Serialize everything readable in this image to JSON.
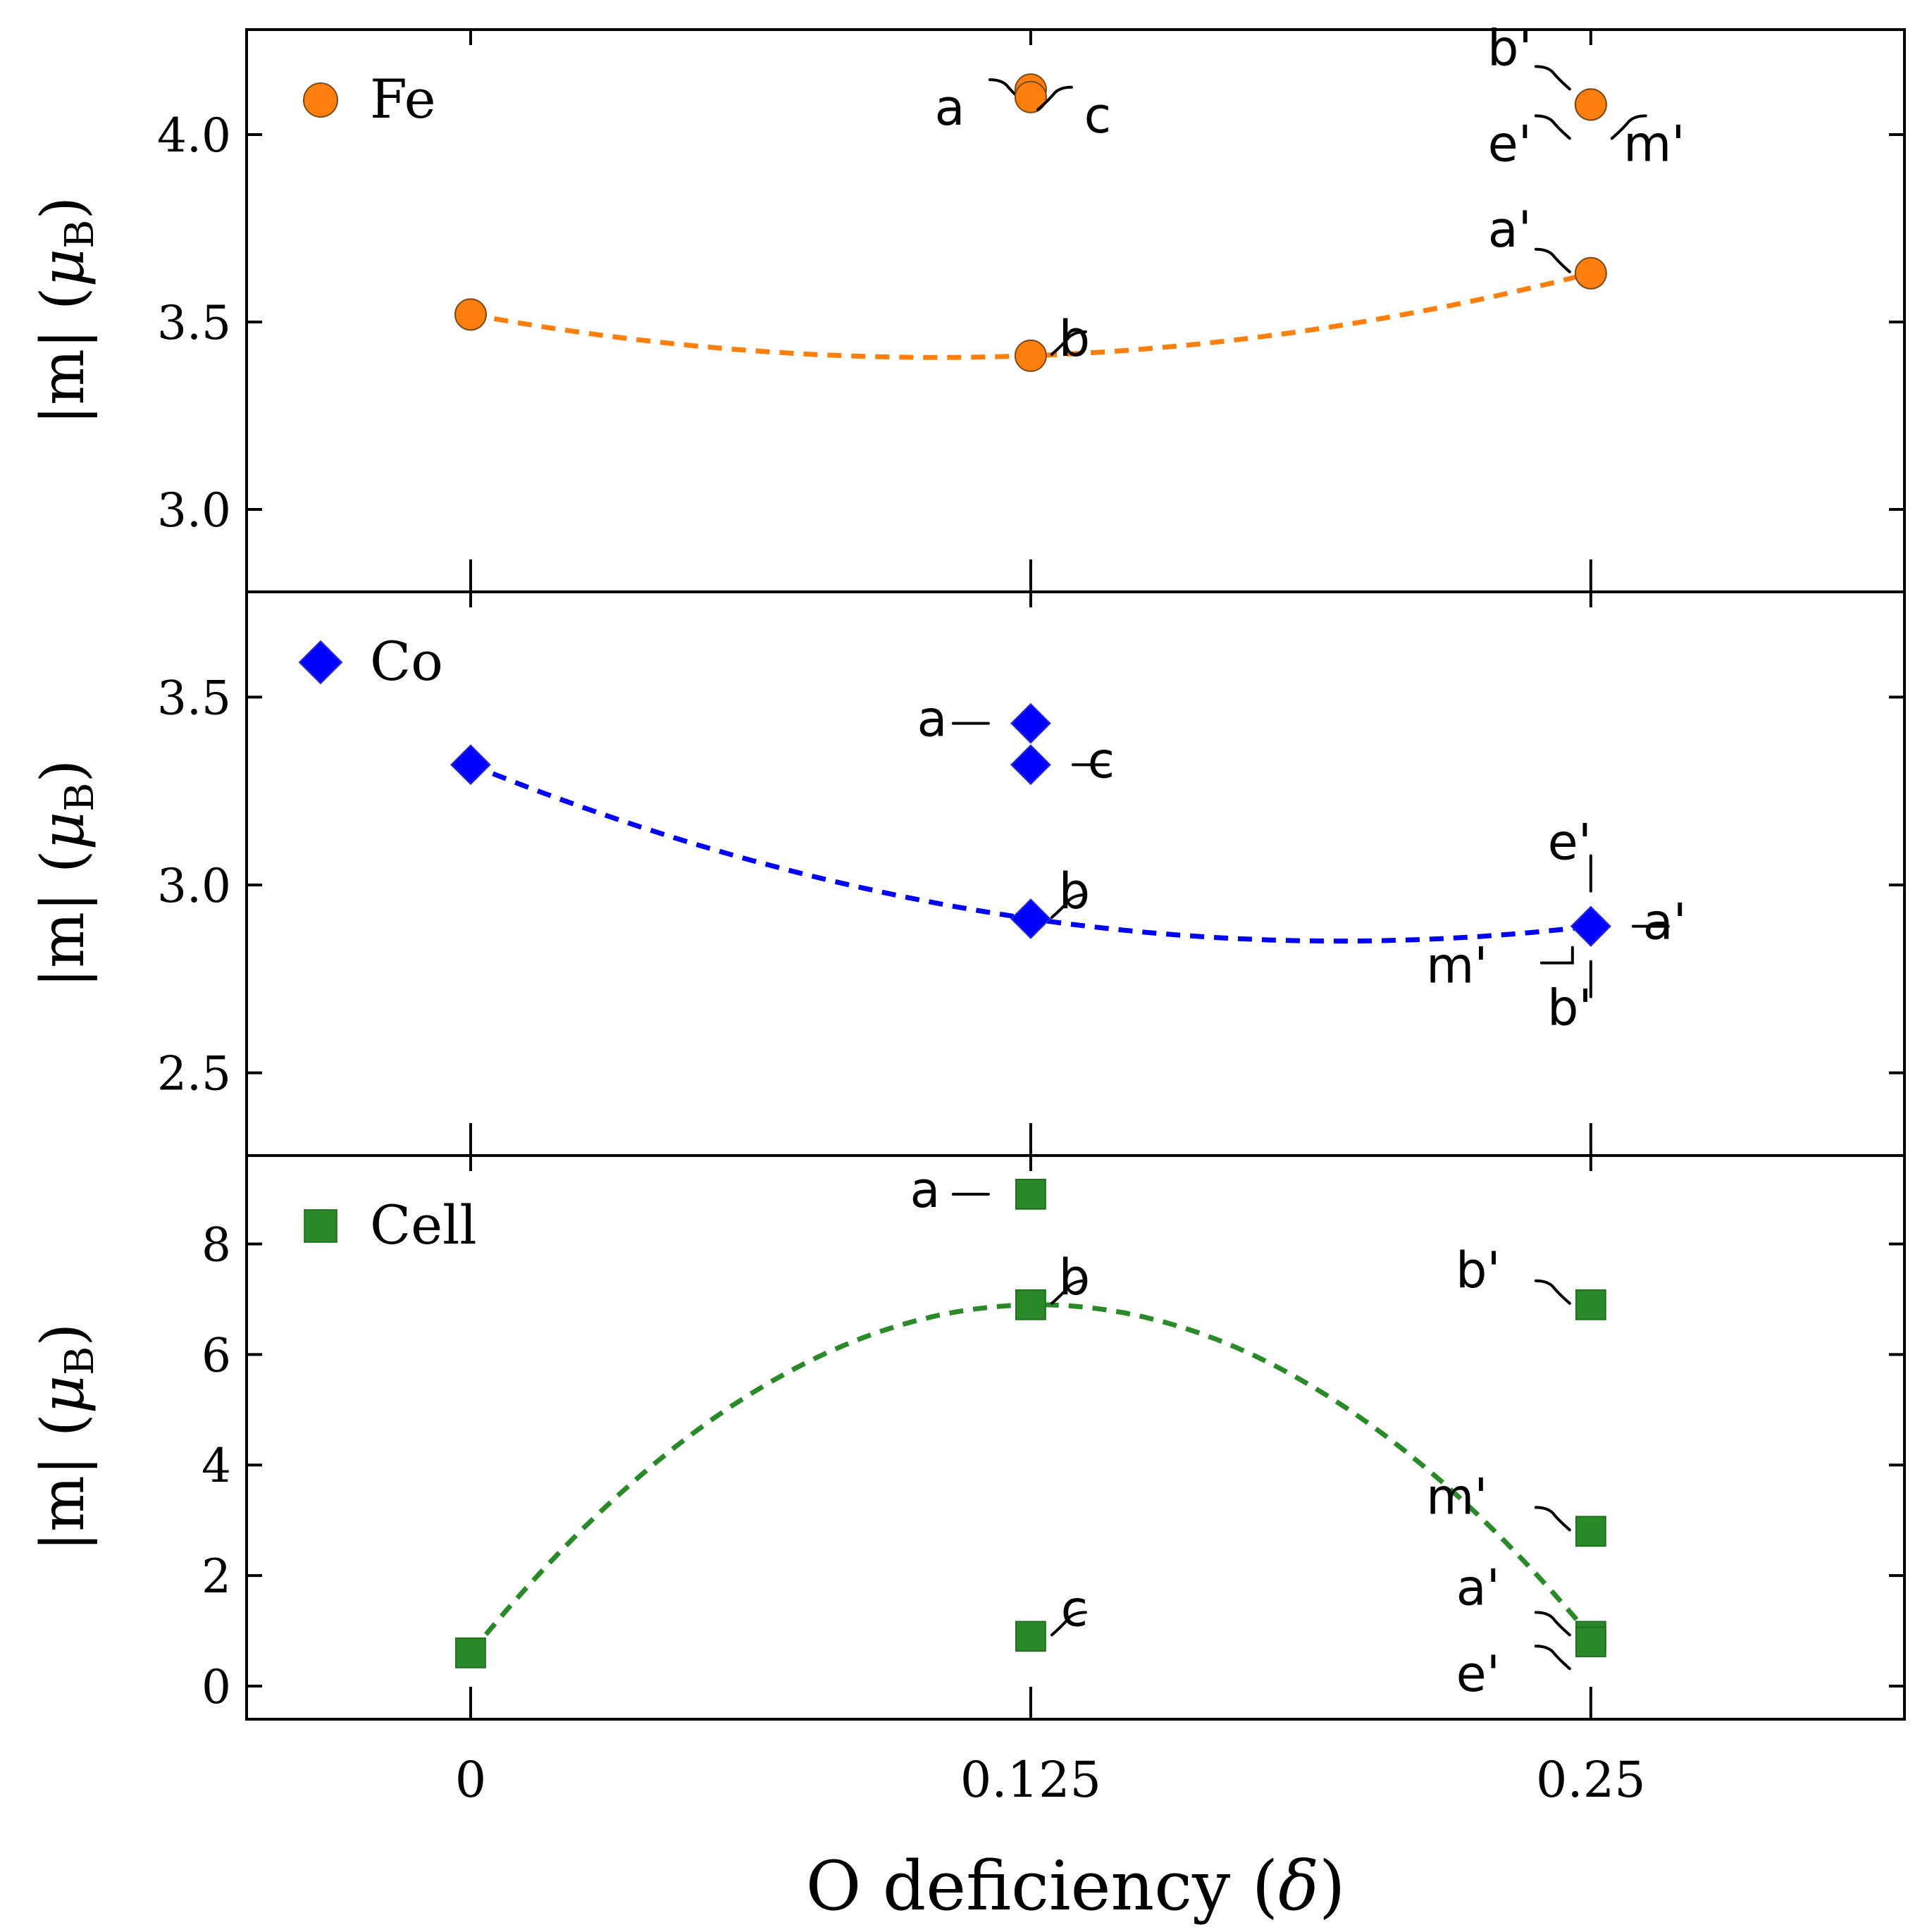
{
  "chart_data": [
    {
      "type": "scatter",
      "panel": "Fe",
      "legend": "Fe",
      "ylabel": "|m| (μB)",
      "ylabel_main": "|m| (",
      "ylabel_mu": "μ",
      "ylabel_sub": "B",
      "ylabel_close": ")",
      "ylim": [
        2.78,
        4.28
      ],
      "yticks": [
        3.0,
        3.5,
        4.0
      ],
      "ytick_labels": [
        "3.0",
        "3.5",
        "4.0"
      ],
      "color": "#ff7f0e",
      "marker": "circle",
      "points": [
        {
          "x": 0,
          "y": 3.52,
          "label": ""
        },
        {
          "x": 0.125,
          "y": 3.41,
          "label": "b"
        },
        {
          "x": 0.125,
          "y": 4.12,
          "label": "a"
        },
        {
          "x": 0.125,
          "y": 4.1,
          "label": "c"
        },
        {
          "x": 0.25,
          "y": 3.63,
          "label": "a'"
        },
        {
          "x": 0.25,
          "y": 4.08,
          "label": "b'"
        },
        {
          "x": 0.25,
          "y": 4.08,
          "label": "e'"
        },
        {
          "x": 0.25,
          "y": 4.08,
          "label": "m'"
        }
      ],
      "trend": {
        "x": [
          0,
          0.125,
          0.25
        ],
        "y": [
          3.52,
          3.41,
          3.63
        ]
      }
    },
    {
      "type": "scatter",
      "panel": "Co",
      "legend": "Co",
      "ylabel": "|m| (μB)",
      "ylabel_main": "|m| (",
      "ylabel_mu": "μ",
      "ylabel_sub": "B",
      "ylabel_close": ")",
      "ylim": [
        2.28,
        3.78
      ],
      "yticks": [
        2.5,
        3.0,
        3.5
      ],
      "ytick_labels": [
        "2.5",
        "3.0",
        "3.5"
      ],
      "color": "#0000ff",
      "marker": "diamond",
      "points": [
        {
          "x": 0,
          "y": 3.32,
          "label": ""
        },
        {
          "x": 0.125,
          "y": 2.91,
          "label": "b"
        },
        {
          "x": 0.125,
          "y": 3.43,
          "label": "a"
        },
        {
          "x": 0.125,
          "y": 3.32,
          "label": "c"
        },
        {
          "x": 0.25,
          "y": 2.89,
          "label": "a'"
        },
        {
          "x": 0.25,
          "y": 2.89,
          "label": "b'"
        },
        {
          "x": 0.25,
          "y": 2.89,
          "label": "e'"
        },
        {
          "x": 0.25,
          "y": 2.89,
          "label": "m'"
        }
      ],
      "trend": {
        "x": [
          0,
          0.125,
          0.25
        ],
        "y": [
          3.32,
          2.91,
          2.89
        ]
      }
    },
    {
      "type": "scatter",
      "panel": "Cell",
      "legend": "Cell",
      "ylabel": "|m| (μB)",
      "ylabel_main": "|m| (",
      "ylabel_mu": "μ",
      "ylabel_sub": "B",
      "ylabel_close": ")",
      "xlabel": "O deficiency (δ)",
      "xlabel_main": "O deficiency (",
      "xlabel_delta": "δ",
      "xlabel_close": ")",
      "xlim": [
        -0.05,
        0.32
      ],
      "xticks": [
        0,
        0.125,
        0.25
      ],
      "xtick_labels": [
        "0",
        "0.125",
        "0.25"
      ],
      "ylim": [
        -0.6,
        9.6
      ],
      "yticks": [
        0,
        2,
        4,
        6,
        8
      ],
      "ytick_labels": [
        "0",
        "2",
        "4",
        "6",
        "8"
      ],
      "color": "#2a8a2a",
      "marker": "square",
      "points": [
        {
          "x": 0,
          "y": 0.6,
          "label": ""
        },
        {
          "x": 0.125,
          "y": 6.9,
          "label": "b"
        },
        {
          "x": 0.125,
          "y": 8.9,
          "label": "a"
        },
        {
          "x": 0.125,
          "y": 0.9,
          "label": "c"
        },
        {
          "x": 0.25,
          "y": 6.9,
          "label": "b'"
        },
        {
          "x": 0.25,
          "y": 2.8,
          "label": "m'"
        },
        {
          "x": 0.25,
          "y": 0.9,
          "label": "a'"
        },
        {
          "x": 0.25,
          "y": 0.8,
          "label": "e'"
        }
      ],
      "trend": {
        "x": [
          0,
          0.125,
          0.25
        ],
        "y": [
          0.6,
          6.9,
          0.9
        ]
      }
    }
  ]
}
